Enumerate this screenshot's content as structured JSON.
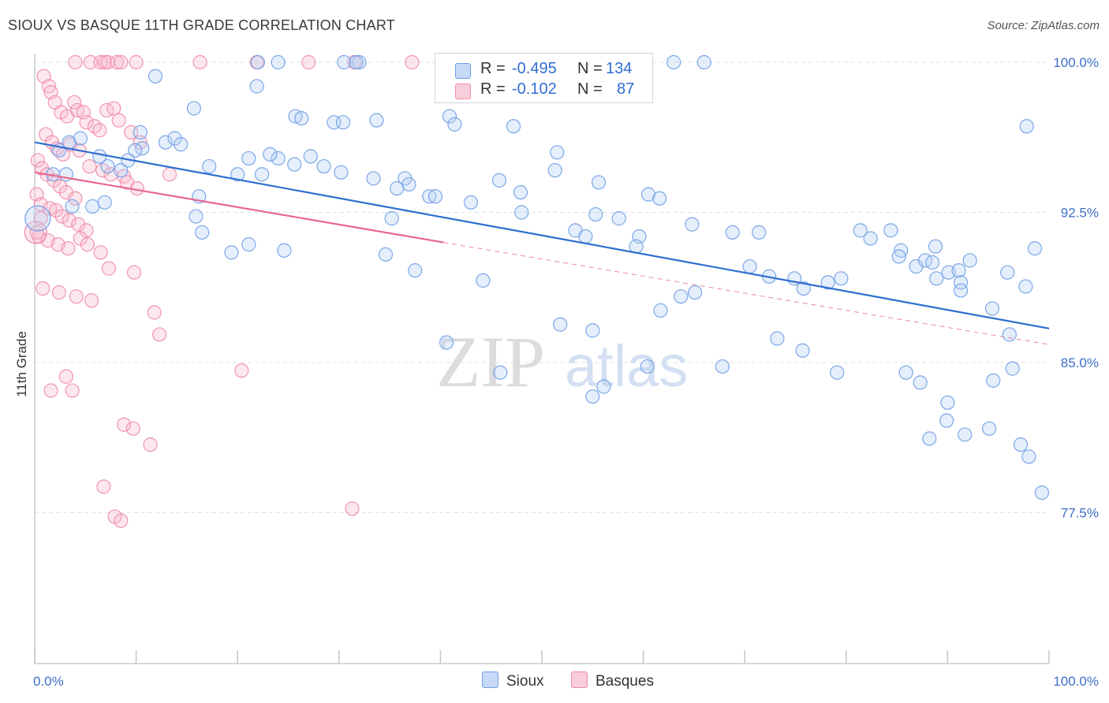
{
  "header": {
    "title": "SIOUX VS BASQUE 11TH GRADE CORRELATION CHART",
    "source": "Source: ZipAtlas.com"
  },
  "watermark": {
    "zip": "ZIP",
    "atlas": "atlas"
  },
  "legend": {
    "rows": [
      {
        "r_label": "R =",
        "r_value": "-0.495",
        "n_label": "N =",
        "n_value": "134",
        "color": "#6f9fe6"
      },
      {
        "r_label": "R =",
        "r_value": "-0.102",
        "n_label": "N =",
        "n_value": "87",
        "color": "#f08aaa"
      }
    ]
  },
  "bottom_legend": {
    "sioux": "Sioux",
    "basques": "Basques"
  },
  "chart_data": {
    "type": "scatter",
    "title": "SIOUX VS BASQUE 11TH GRADE CORRELATION CHART",
    "xlabel": "",
    "ylabel": "11th Grade",
    "xlim": [
      0,
      100
    ],
    "ylim": [
      71.5,
      101.5
    ],
    "x_tick_labels": [
      "0.0%",
      "100.0%"
    ],
    "y_ticks": [
      100.0,
      92.5,
      85.0,
      77.5
    ],
    "y_tick_labels": [
      "100.0%",
      "92.5%",
      "85.0%",
      "77.5%"
    ],
    "grid": true,
    "colors": {
      "sioux": "#6f9fe6",
      "sioux_line": "#2e6fcf",
      "basques": "#f08aaa",
      "basques_line": "#e8678f"
    },
    "series": [
      {
        "name": "Sioux",
        "trend": {
          "x": [
            0,
            100
          ],
          "y": [
            96.0,
            86.7
          ]
        },
        "points": [
          [
            22,
            100
          ],
          [
            24,
            100
          ],
          [
            30.5,
            100
          ],
          [
            32,
            100
          ],
          [
            45.5,
            100
          ],
          [
            46,
            100
          ],
          [
            63,
            100
          ],
          [
            66,
            100
          ],
          [
            31.7,
            100
          ],
          [
            11.9,
            99.3
          ],
          [
            21.9,
            98.8
          ],
          [
            15.7,
            97.7
          ],
          [
            25.7,
            97.3
          ],
          [
            29.5,
            97.0
          ],
          [
            26.3,
            97.2
          ],
          [
            30.4,
            97.0
          ],
          [
            33.7,
            97.1
          ],
          [
            40.9,
            97.3
          ],
          [
            41.4,
            96.9
          ],
          [
            47.2,
            96.8
          ],
          [
            97.8,
            96.8
          ],
          [
            10.6,
            95.7
          ],
          [
            9.9,
            95.6
          ],
          [
            10.4,
            96.5
          ],
          [
            12.9,
            96.0
          ],
          [
            13.8,
            96.2
          ],
          [
            14.4,
            95.9
          ],
          [
            24,
            95.2
          ],
          [
            25.6,
            94.9
          ],
          [
            22.4,
            94.4
          ],
          [
            3.4,
            96.0
          ],
          [
            4.5,
            96.2
          ],
          [
            2.4,
            95.6
          ],
          [
            1.8,
            94.4
          ],
          [
            3.1,
            94.4
          ],
          [
            7.2,
            94.8
          ],
          [
            8.5,
            94.6
          ],
          [
            9.2,
            95.1
          ],
          [
            6.4,
            95.3
          ],
          [
            3.7,
            92.8
          ],
          [
            5.7,
            92.8
          ],
          [
            6.9,
            93.0
          ],
          [
            17.2,
            94.8
          ],
          [
            20,
            94.4
          ],
          [
            21.1,
            95.2
          ],
          [
            23.2,
            95.4
          ],
          [
            27.2,
            95.3
          ],
          [
            28.5,
            94.8
          ],
          [
            30.2,
            94.5
          ],
          [
            33.4,
            94.2
          ],
          [
            35.7,
            93.7
          ],
          [
            36.5,
            94.2
          ],
          [
            36.9,
            93.9
          ],
          [
            38.9,
            93.3
          ],
          [
            39.5,
            93.3
          ],
          [
            43,
            93.0
          ],
          [
            48,
            92.5
          ],
          [
            16.2,
            93.3
          ],
          [
            15.9,
            92.3
          ],
          [
            16.5,
            91.5
          ],
          [
            19.4,
            90.5
          ],
          [
            21.1,
            90.9
          ],
          [
            24.6,
            90.6
          ],
          [
            35.2,
            92.2
          ],
          [
            53.3,
            91.6
          ],
          [
            54.3,
            91.3
          ],
          [
            55.3,
            92.4
          ],
          [
            57.6,
            92.2
          ],
          [
            59.6,
            91.3
          ],
          [
            59.3,
            90.8
          ],
          [
            51.3,
            94.6
          ],
          [
            47.9,
            93.5
          ],
          [
            45.8,
            94.1
          ],
          [
            51.5,
            95.5
          ],
          [
            55.6,
            94.0
          ],
          [
            60.5,
            93.4
          ],
          [
            61.6,
            93.2
          ],
          [
            64.8,
            91.9
          ],
          [
            68.8,
            91.5
          ],
          [
            71.4,
            91.5
          ],
          [
            70.5,
            89.8
          ],
          [
            72.4,
            89.3
          ],
          [
            74.9,
            89.2
          ],
          [
            75.8,
            88.7
          ],
          [
            78.2,
            89.0
          ],
          [
            79.5,
            89.2
          ],
          [
            82.4,
            91.2
          ],
          [
            84.4,
            91.6
          ],
          [
            85.4,
            90.6
          ],
          [
            86.9,
            89.8
          ],
          [
            87.8,
            90.1
          ],
          [
            88.5,
            90.0
          ],
          [
            88.9,
            89.2
          ],
          [
            90.1,
            89.5
          ],
          [
            91.1,
            89.6
          ],
          [
            91.3,
            89.0
          ],
          [
            85.2,
            90.3
          ],
          [
            88.8,
            90.8
          ],
          [
            91.3,
            88.6
          ],
          [
            94.4,
            87.7
          ],
          [
            96.1,
            86.4
          ],
          [
            97.7,
            88.8
          ],
          [
            95.9,
            89.5
          ],
          [
            92.2,
            90.1
          ],
          [
            98.6,
            90.7
          ],
          [
            81.4,
            91.6
          ],
          [
            65.1,
            88.5
          ],
          [
            63.7,
            88.3
          ],
          [
            61.7,
            87.6
          ],
          [
            45.9,
            84.5
          ],
          [
            40.6,
            86.0
          ],
          [
            37.5,
            89.6
          ],
          [
            34.6,
            90.4
          ],
          [
            44.2,
            89.1
          ],
          [
            51.8,
            86.9
          ],
          [
            55,
            86.6
          ],
          [
            56.1,
            83.8
          ],
          [
            55,
            83.3
          ],
          [
            60.4,
            84.8
          ],
          [
            67.8,
            84.8
          ],
          [
            73.2,
            86.2
          ],
          [
            75.7,
            85.6
          ],
          [
            79.1,
            84.5
          ],
          [
            85.9,
            84.5
          ],
          [
            87.3,
            84.0
          ],
          [
            90,
            83.0
          ],
          [
            94.5,
            84.1
          ],
          [
            96.4,
            84.7
          ],
          [
            88.2,
            81.2
          ],
          [
            89.9,
            82.1
          ],
          [
            94.1,
            81.7
          ],
          [
            91.7,
            81.4
          ],
          [
            97.2,
            80.9
          ],
          [
            98,
            80.3
          ],
          [
            99.3,
            78.5
          ]
        ]
      },
      {
        "name": "Basques",
        "trend": {
          "x": [
            0,
            40.3
          ],
          "y": [
            94.5,
            91.0
          ],
          "dashed_extension": {
            "x": [
              40.3,
              100
            ],
            "y": [
              91.0,
              85.9
            ]
          }
        },
        "points": [
          [
            4,
            100
          ],
          [
            5.5,
            100
          ],
          [
            6.5,
            100
          ],
          [
            6.9,
            100
          ],
          [
            7.2,
            100
          ],
          [
            8.1,
            100
          ],
          [
            8.5,
            100
          ],
          [
            10,
            100
          ],
          [
            16.3,
            100
          ],
          [
            21.9,
            100
          ],
          [
            27,
            100
          ],
          [
            31.5,
            100
          ],
          [
            37.2,
            100
          ],
          [
            41.3,
            100
          ],
          [
            0.9,
            99.3
          ],
          [
            1.4,
            98.8
          ],
          [
            1.6,
            98.5
          ],
          [
            2,
            98.0
          ],
          [
            2.6,
            97.5
          ],
          [
            3.2,
            97.3
          ],
          [
            3.9,
            98.0
          ],
          [
            4.2,
            97.6
          ],
          [
            4.8,
            97.5
          ],
          [
            5.1,
            97.0
          ],
          [
            5.9,
            96.8
          ],
          [
            6.4,
            96.6
          ],
          [
            7.1,
            97.6
          ],
          [
            7.8,
            97.7
          ],
          [
            8.3,
            97.1
          ],
          [
            9.5,
            96.5
          ],
          [
            10.4,
            96.0
          ],
          [
            1.1,
            96.4
          ],
          [
            1.7,
            96.0
          ],
          [
            2.2,
            95.7
          ],
          [
            2.8,
            95.4
          ],
          [
            3.5,
            95.9
          ],
          [
            4.4,
            95.6
          ],
          [
            0.3,
            95.1
          ],
          [
            0.7,
            94.7
          ],
          [
            1.2,
            94.4
          ],
          [
            1.9,
            94.1
          ],
          [
            2.5,
            93.8
          ],
          [
            3.1,
            93.5
          ],
          [
            4,
            93.2
          ],
          [
            5.4,
            94.8
          ],
          [
            6.7,
            94.6
          ],
          [
            7.5,
            94.4
          ],
          [
            8.8,
            94.3
          ],
          [
            9.1,
            94.0
          ],
          [
            10.1,
            93.7
          ],
          [
            13.3,
            94.4
          ],
          [
            0.2,
            93.4
          ],
          [
            0.6,
            92.9
          ],
          [
            1.5,
            92.7
          ],
          [
            2.1,
            92.6
          ],
          [
            2.7,
            92.3
          ],
          [
            3.4,
            92.1
          ],
          [
            4.3,
            91.9
          ],
          [
            5.1,
            91.6
          ],
          [
            0.4,
            91.3
          ],
          [
            1.3,
            91.1
          ],
          [
            2.3,
            90.9
          ],
          [
            3.3,
            90.7
          ],
          [
            4.5,
            91.2
          ],
          [
            5.2,
            90.9
          ],
          [
            6.5,
            90.5
          ],
          [
            7.3,
            89.7
          ],
          [
            9.8,
            89.5
          ],
          [
            0.8,
            88.7
          ],
          [
            2.4,
            88.5
          ],
          [
            4.1,
            88.3
          ],
          [
            5.6,
            88.1
          ],
          [
            11.8,
            87.5
          ],
          [
            12.3,
            86.4
          ],
          [
            20.4,
            84.6
          ],
          [
            3.1,
            84.3
          ],
          [
            1.6,
            83.6
          ],
          [
            3.7,
            83.6
          ],
          [
            8.8,
            81.9
          ],
          [
            9.7,
            81.7
          ],
          [
            11.4,
            80.9
          ],
          [
            6.8,
            78.8
          ],
          [
            7.9,
            77.3
          ],
          [
            8.5,
            77.1
          ],
          [
            31.3,
            77.7
          ],
          [
            0.6,
            92.2
          ],
          [
            0.2,
            91.5
          ]
        ]
      }
    ]
  }
}
